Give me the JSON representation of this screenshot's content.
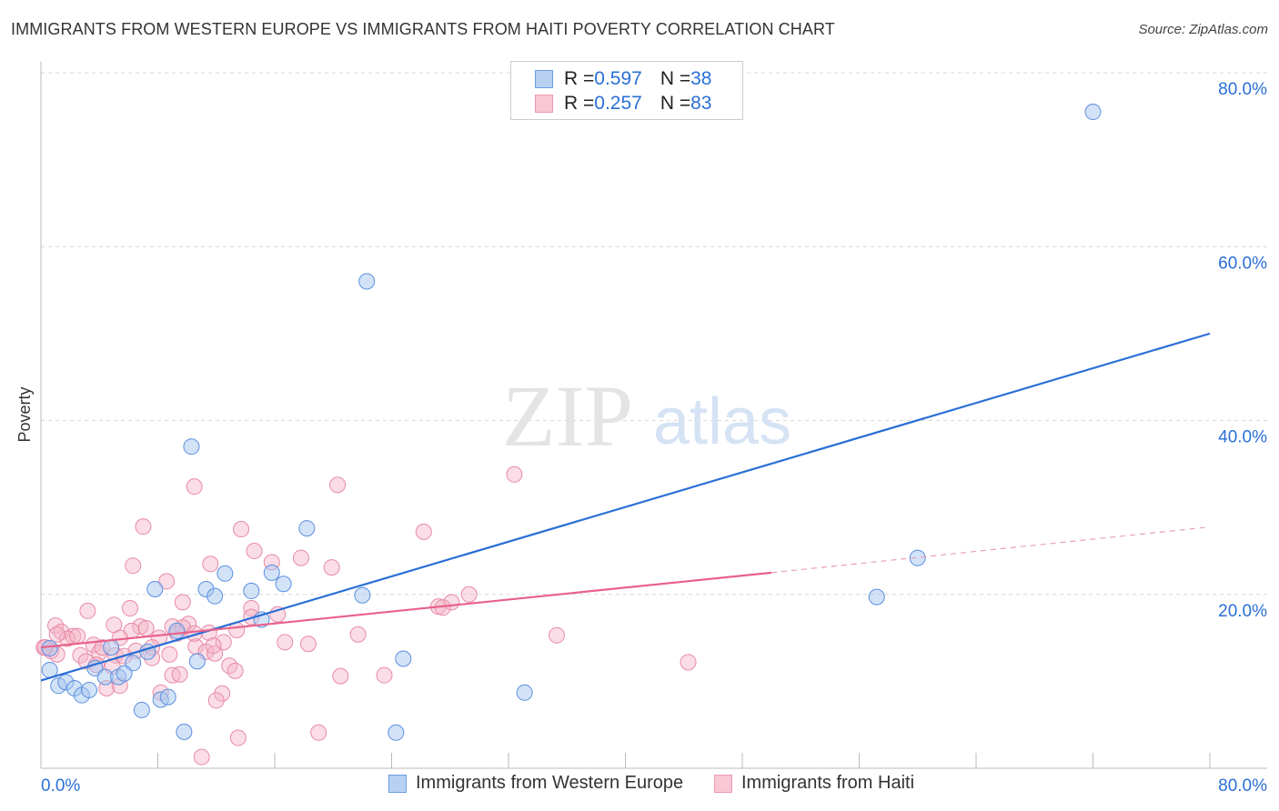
{
  "title": "IMMIGRANTS FROM WESTERN EUROPE VS IMMIGRANTS FROM HAITI POVERTY CORRELATION CHART",
  "source": "Source: ZipAtlas.com",
  "watermark": {
    "zip": "ZIP",
    "atlas": "atlas"
  },
  "legend": [
    {
      "r_label": "R = ",
      "r": "0.597",
      "n_label": "N = ",
      "n": "38"
    },
    {
      "r_label": "R = ",
      "r": "0.257",
      "n_label": "N = ",
      "n": "83"
    }
  ],
  "chart_data": {
    "type": "scatter",
    "title": "IMMIGRANTS FROM WESTERN EUROPE VS IMMIGRANTS FROM HAITI POVERTY CORRELATION CHART",
    "xlabel": "",
    "ylabel": "Poverty",
    "xlim": [
      0,
      80
    ],
    "ylim": [
      0,
      80
    ],
    "x_tick_labels": {
      "min": "0.0%",
      "max": "80.0%"
    },
    "y_ticks": [
      20,
      40,
      60,
      80
    ],
    "y_tick_labels": [
      "20.0%",
      "40.0%",
      "60.0%",
      "80.0%"
    ],
    "grid": true,
    "legend_position": "top-center",
    "colors": {
      "western_europe": "#5b8fe0",
      "haiti": "#e88aa6",
      "blue_line": "#2a6fd6",
      "pink_line": "#e8608a"
    },
    "series": [
      {
        "name": "Immigrants from Western Europe",
        "trend": {
          "x": [
            0,
            80
          ],
          "y": [
            10.1,
            50.0
          ]
        },
        "points": [
          [
            72.0,
            75.5
          ],
          [
            22.3,
            56.0
          ],
          [
            10.3,
            37.0
          ],
          [
            18.2,
            27.6
          ],
          [
            60.0,
            24.2
          ],
          [
            57.2,
            19.7
          ],
          [
            7.8,
            20.6
          ],
          [
            11.3,
            20.6
          ],
          [
            11.9,
            19.8
          ],
          [
            12.6,
            22.4
          ],
          [
            14.4,
            20.4
          ],
          [
            15.8,
            22.5
          ],
          [
            16.6,
            21.2
          ],
          [
            22.0,
            19.9
          ],
          [
            15.1,
            17.1
          ],
          [
            9.3,
            15.8
          ],
          [
            7.3,
            13.4
          ],
          [
            4.8,
            13.9
          ],
          [
            6.3,
            12.1
          ],
          [
            10.7,
            12.3
          ],
          [
            24.8,
            12.6
          ],
          [
            0.6,
            13.8
          ],
          [
            0.6,
            11.3
          ],
          [
            1.2,
            9.5
          ],
          [
            1.7,
            9.9
          ],
          [
            2.3,
            9.2
          ],
          [
            2.8,
            8.4
          ],
          [
            3.3,
            9.0
          ],
          [
            3.7,
            11.5
          ],
          [
            4.4,
            10.5
          ],
          [
            5.3,
            10.5
          ],
          [
            5.7,
            10.9
          ],
          [
            6.9,
            6.7
          ],
          [
            8.2,
            7.9
          ],
          [
            8.7,
            8.2
          ],
          [
            9.8,
            4.2
          ],
          [
            24.3,
            4.1
          ],
          [
            33.1,
            8.7
          ]
        ]
      },
      {
        "name": "Immigrants from Haiti",
        "trend": {
          "x": [
            0,
            50
          ],
          "y": [
            13.9,
            22.5
          ]
        },
        "trend_extension": {
          "x": [
            50,
            79.7
          ],
          "y": [
            22.5,
            27.7
          ]
        },
        "points": [
          [
            32.4,
            33.8
          ],
          [
            20.3,
            32.6
          ],
          [
            10.5,
            32.4
          ],
          [
            7.0,
            27.8
          ],
          [
            13.7,
            27.5
          ],
          [
            26.2,
            27.2
          ],
          [
            14.6,
            25.0
          ],
          [
            17.8,
            24.2
          ],
          [
            6.3,
            23.3
          ],
          [
            11.6,
            23.5
          ],
          [
            19.9,
            23.1
          ],
          [
            15.8,
            23.7
          ],
          [
            8.6,
            21.5
          ],
          [
            29.3,
            20.0
          ],
          [
            9.7,
            19.1
          ],
          [
            14.4,
            18.4
          ],
          [
            27.2,
            18.6
          ],
          [
            28.1,
            19.1
          ],
          [
            27.5,
            18.5
          ],
          [
            16.2,
            17.7
          ],
          [
            3.2,
            18.1
          ],
          [
            6.1,
            18.4
          ],
          [
            1.0,
            16.4
          ],
          [
            5.0,
            16.5
          ],
          [
            6.8,
            16.3
          ],
          [
            9.0,
            16.3
          ],
          [
            13.4,
            15.9
          ],
          [
            10.1,
            16.6
          ],
          [
            9.7,
            16.2
          ],
          [
            11.5,
            15.6
          ],
          [
            1.4,
            15.7
          ],
          [
            2.2,
            15.2
          ],
          [
            1.8,
            14.9
          ],
          [
            2.5,
            15.2
          ],
          [
            21.7,
            15.4
          ],
          [
            35.3,
            15.3
          ],
          [
            16.7,
            14.5
          ],
          [
            18.3,
            14.3
          ],
          [
            12.5,
            14.5
          ],
          [
            10.6,
            14.0
          ],
          [
            8.1,
            15.0
          ],
          [
            9.3,
            15.5
          ],
          [
            3.6,
            14.2
          ],
          [
            6.5,
            13.5
          ],
          [
            7.6,
            13.9
          ],
          [
            0.2,
            13.9
          ],
          [
            0.7,
            13.5
          ],
          [
            1.1,
            13.1
          ],
          [
            4.0,
            13.3
          ],
          [
            5.1,
            13.0
          ],
          [
            5.7,
            12.9
          ],
          [
            7.6,
            12.7
          ],
          [
            11.3,
            13.4
          ],
          [
            11.9,
            13.2
          ],
          [
            2.7,
            13.0
          ],
          [
            3.1,
            12.3
          ],
          [
            3.8,
            11.9
          ],
          [
            4.9,
            11.7
          ],
          [
            12.9,
            11.8
          ],
          [
            13.3,
            11.2
          ],
          [
            9.0,
            10.7
          ],
          [
            9.5,
            10.8
          ],
          [
            20.5,
            10.6
          ],
          [
            23.5,
            10.7
          ],
          [
            44.3,
            12.2
          ],
          [
            4.5,
            9.2
          ],
          [
            5.4,
            9.5
          ],
          [
            8.2,
            8.7
          ],
          [
            12.4,
            8.6
          ],
          [
            12.0,
            7.8
          ],
          [
            19.0,
            4.1
          ],
          [
            13.5,
            3.5
          ],
          [
            11.0,
            1.3
          ],
          [
            0.3,
            13.9
          ],
          [
            1.1,
            15.4
          ],
          [
            4.2,
            13.9
          ],
          [
            6.2,
            15.8
          ],
          [
            7.2,
            16.1
          ],
          [
            10.5,
            15.5
          ],
          [
            14.4,
            17.4
          ],
          [
            11.8,
            14.1
          ],
          [
            8.8,
            13.1
          ],
          [
            5.4,
            15.0
          ]
        ]
      }
    ]
  }
}
